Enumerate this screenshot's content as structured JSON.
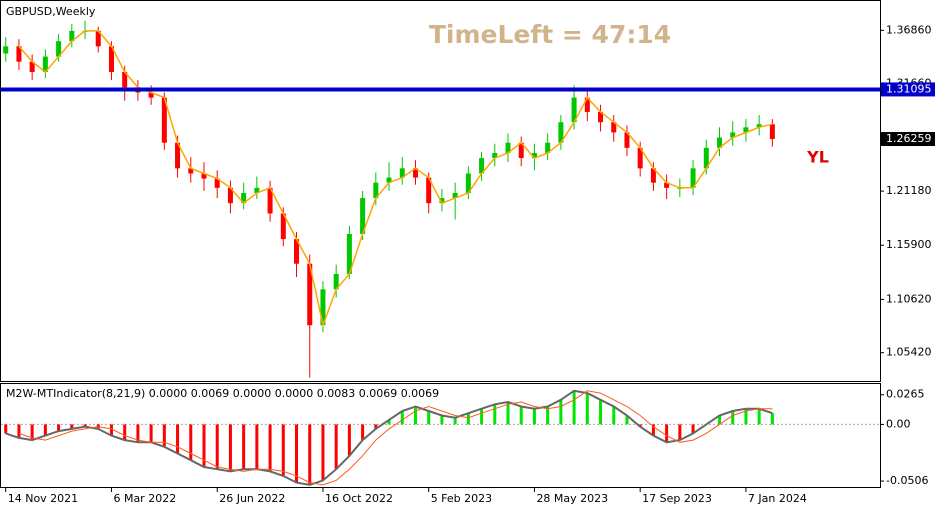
{
  "chart_data": [
    {
      "type": "candlestick",
      "title": "GBPUSD,Weekly",
      "annotation": "TimeLeft = 47:14",
      "marker_text": "YL",
      "x": [
        "2021-11-14",
        "2021-11-28",
        "2021-12-12",
        "2021-12-26",
        "2022-01-09",
        "2022-01-23",
        "2022-02-06",
        "2022-02-20",
        "2022-03-06",
        "2022-03-20",
        "2022-04-03",
        "2022-04-17",
        "2022-05-01",
        "2022-05-15",
        "2022-05-29",
        "2022-06-12",
        "2022-06-26",
        "2022-07-10",
        "2022-07-24",
        "2022-08-07",
        "2022-08-21",
        "2022-09-04",
        "2022-09-18",
        "2022-10-02",
        "2022-10-16",
        "2022-10-30",
        "2022-11-13",
        "2022-11-27",
        "2022-12-11",
        "2022-12-25",
        "2023-01-08",
        "2023-01-22",
        "2023-02-05",
        "2023-02-19",
        "2023-03-05",
        "2023-03-19",
        "2023-04-02",
        "2023-04-16",
        "2023-04-30",
        "2023-05-14",
        "2023-05-28",
        "2023-06-11",
        "2023-06-25",
        "2023-07-09",
        "2023-07-23",
        "2023-08-06",
        "2023-08-20",
        "2023-09-03",
        "2023-09-17",
        "2023-10-01",
        "2023-10-15",
        "2023-10-29",
        "2023-11-12",
        "2023-11-26",
        "2023-12-10",
        "2023-12-24",
        "2024-01-07",
        "2024-01-21",
        "2024-02-04"
      ],
      "open": [
        1.346,
        1.353,
        1.338,
        1.328,
        1.343,
        1.358,
        1.368,
        1.368,
        1.353,
        1.328,
        1.313,
        1.308,
        1.303,
        1.259,
        1.234,
        1.229,
        1.224,
        1.215,
        1.2,
        1.21,
        1.215,
        1.19,
        1.165,
        1.141,
        1.081,
        1.116,
        1.131,
        1.17,
        1.205,
        1.22,
        1.225,
        1.234,
        1.225,
        1.2,
        1.205,
        1.21,
        1.229,
        1.244,
        1.249,
        1.259,
        1.244,
        1.249,
        1.259,
        1.279,
        1.303,
        1.289,
        1.279,
        1.269,
        1.254,
        1.234,
        1.22,
        1.215,
        1.215,
        1.234,
        1.254,
        1.264,
        1.269,
        1.274,
        1.277
      ],
      "high": [
        1.362,
        1.36,
        1.345,
        1.35,
        1.365,
        1.375,
        1.378,
        1.372,
        1.358,
        1.334,
        1.32,
        1.315,
        1.308,
        1.266,
        1.245,
        1.24,
        1.232,
        1.222,
        1.22,
        1.226,
        1.222,
        1.196,
        1.172,
        1.15,
        1.124,
        1.14,
        1.178,
        1.212,
        1.23,
        1.24,
        1.245,
        1.242,
        1.23,
        1.214,
        1.22,
        1.236,
        1.25,
        1.258,
        1.268,
        1.265,
        1.258,
        1.268,
        1.286,
        1.315,
        1.31,
        1.296,
        1.286,
        1.276,
        1.26,
        1.24,
        1.228,
        1.224,
        1.242,
        1.262,
        1.274,
        1.28,
        1.282,
        1.286,
        1.282
      ],
      "low": [
        1.338,
        1.33,
        1.32,
        1.322,
        1.338,
        1.352,
        1.36,
        1.347,
        1.32,
        1.3,
        1.3,
        1.296,
        1.252,
        1.225,
        1.22,
        1.212,
        1.205,
        1.19,
        1.194,
        1.204,
        1.182,
        1.158,
        1.128,
        1.03,
        1.074,
        1.108,
        1.126,
        1.164,
        1.198,
        1.212,
        1.218,
        1.218,
        1.19,
        1.192,
        1.184,
        1.204,
        1.222,
        1.236,
        1.24,
        1.236,
        1.232,
        1.242,
        1.252,
        1.272,
        1.28,
        1.27,
        1.26,
        1.246,
        1.226,
        1.212,
        1.204,
        1.206,
        1.208,
        1.228,
        1.246,
        1.256,
        1.26,
        1.266,
        1.255
      ],
      "close": [
        1.353,
        1.338,
        1.328,
        1.343,
        1.358,
        1.368,
        1.368,
        1.353,
        1.328,
        1.313,
        1.308,
        1.303,
        1.259,
        1.234,
        1.229,
        1.224,
        1.215,
        1.2,
        1.21,
        1.215,
        1.19,
        1.165,
        1.141,
        1.081,
        1.116,
        1.131,
        1.17,
        1.205,
        1.22,
        1.225,
        1.234,
        1.225,
        1.2,
        1.205,
        1.21,
        1.229,
        1.244,
        1.249,
        1.259,
        1.244,
        1.249,
        1.259,
        1.279,
        1.303,
        1.289,
        1.279,
        1.269,
        1.254,
        1.234,
        1.22,
        1.215,
        1.215,
        1.234,
        1.254,
        1.264,
        1.269,
        1.274,
        1.277,
        1.2626
      ],
      "trend": [
        null,
        1.353,
        1.338,
        1.328,
        1.343,
        1.358,
        1.368,
        1.368,
        1.353,
        1.328,
        1.313,
        1.308,
        1.303,
        1.259,
        1.234,
        1.229,
        1.224,
        1.215,
        1.2,
        1.21,
        1.215,
        1.19,
        1.165,
        1.141,
        1.081,
        1.116,
        1.131,
        1.17,
        1.205,
        1.22,
        1.225,
        1.234,
        1.225,
        1.2,
        1.205,
        1.21,
        1.229,
        1.244,
        1.249,
        1.259,
        1.244,
        1.249,
        1.259,
        1.279,
        1.303,
        1.289,
        1.279,
        1.269,
        1.254,
        1.234,
        1.22,
        1.215,
        1.215,
        1.234,
        1.254,
        1.264,
        1.269,
        1.274,
        1.277
      ],
      "up_color": "#00c800",
      "down_color": "#ff0000",
      "trend_color": "#ffa500",
      "hline": 1.31095,
      "hline_color": "#0000c8",
      "current_price": 1.26259,
      "xlim": [
        "2021-11-09",
        "2024-05-28"
      ],
      "xticks": [
        {
          "value": "2021-11-14",
          "label": "14 Nov 2021"
        },
        {
          "value": "2022-03-06",
          "label": "6 Mar 2022"
        },
        {
          "value": "2022-06-26",
          "label": "26 Jun 2022"
        },
        {
          "value": "2022-10-16",
          "label": "16 Oct 2022"
        },
        {
          "value": "2023-02-05",
          "label": "5 Feb 2023"
        },
        {
          "value": "2023-05-28",
          "label": "28 May 2023"
        },
        {
          "value": "2023-09-17",
          "label": "17 Sep 2023"
        },
        {
          "value": "2024-01-07",
          "label": "7 Jan 2024"
        }
      ],
      "ylim": [
        1.0266,
        1.3972
      ],
      "yticks": [
        {
          "value": 1.3686,
          "label": "1.36860"
        },
        {
          "value": 1.3166,
          "label": "1.31660"
        },
        {
          "value": 1.2118,
          "label": "1.21180"
        },
        {
          "value": 1.159,
          "label": "1.15900"
        },
        {
          "value": 1.1062,
          "label": "1.10620"
        },
        {
          "value": 1.0542,
          "label": "1.05420"
        }
      ]
    },
    {
      "type": "histogram",
      "title": "M2W-MTIndicator(8,21,9) 0.0000 0.0069 0.0000 0.0000 0.0083 0.0069 0.0069",
      "values": [
        -0.008,
        -0.012,
        -0.014,
        -0.01,
        -0.006,
        -0.004,
        -0.002,
        -0.004,
        -0.01,
        -0.014,
        -0.016,
        -0.016,
        -0.02,
        -0.026,
        -0.032,
        -0.038,
        -0.04,
        -0.042,
        -0.04,
        -0.04,
        -0.042,
        -0.046,
        -0.052,
        -0.054,
        -0.05,
        -0.04,
        -0.028,
        -0.014,
        -0.004,
        0.004,
        0.012,
        0.016,
        0.012,
        0.008,
        0.006,
        0.01,
        0.014,
        0.018,
        0.02,
        0.016,
        0.014,
        0.016,
        0.022,
        0.03,
        0.028,
        0.022,
        0.016,
        0.008,
        -0.002,
        -0.01,
        -0.016,
        -0.014,
        -0.008,
        0.0,
        0.008,
        0.012,
        0.014,
        0.014,
        0.01
      ],
      "signal": [
        null,
        -0.008,
        -0.012,
        -0.014,
        -0.01,
        -0.006,
        -0.004,
        -0.002,
        -0.004,
        -0.01,
        -0.014,
        -0.016,
        -0.016,
        -0.02,
        -0.026,
        -0.032,
        -0.038,
        -0.04,
        -0.042,
        -0.04,
        -0.04,
        -0.042,
        -0.046,
        -0.052,
        -0.054,
        -0.05,
        -0.04,
        -0.028,
        -0.014,
        -0.004,
        0.004,
        0.012,
        0.016,
        0.012,
        0.008,
        0.006,
        0.01,
        0.014,
        0.018,
        0.02,
        0.016,
        0.014,
        0.016,
        0.022,
        0.03,
        0.028,
        0.022,
        0.016,
        0.008,
        -0.002,
        -0.01,
        -0.016,
        -0.014,
        -0.008,
        0.0,
        0.008,
        0.012,
        0.014,
        0.014
      ],
      "positive_color": "#00e600",
      "negative_color": "#ff0000",
      "signal_color": "#ff5a1e",
      "ylim": [
        -0.0559,
        0.0361
      ],
      "yticks": [
        0.0265,
        {
          "value": 0,
          "label": "0.00"
        },
        -0.0506
      ]
    }
  ]
}
